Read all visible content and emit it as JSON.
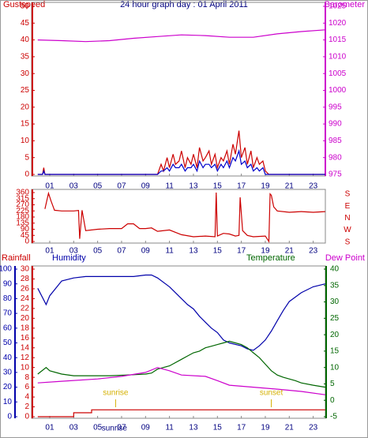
{
  "chart_data": [
    {
      "type": "line",
      "title": "24 hour graph day : 01 April 2011",
      "xlim": [
        0,
        24
      ],
      "xticks": [
        {
          "value": 1,
          "label": "01"
        },
        {
          "value": 3,
          "label": "03"
        },
        {
          "value": 5,
          "label": "05"
        },
        {
          "value": 7,
          "label": "07"
        },
        {
          "value": 9,
          "label": "09"
        },
        11,
        13,
        15,
        17,
        19,
        21,
        23
      ],
      "ylim": [
        0,
        50
      ],
      "yticks": [
        0,
        5,
        10,
        15,
        20,
        25,
        30,
        35,
        40,
        45,
        50
      ],
      "y2lim": [
        975,
        1025
      ],
      "y2ticks": [
        975,
        980,
        985,
        990,
        995,
        1000,
        1005,
        1010,
        1015,
        1020,
        1025
      ],
      "series": [
        {
          "name": "Gustspeed",
          "color": "#cc0000",
          "axis": "y",
          "x": [
            0,
            0.4,
            0.5,
            0.6,
            1,
            10,
            10.3,
            10.5,
            10.8,
            11,
            11.3,
            11.5,
            11.8,
            12,
            12.3,
            12.5,
            12.8,
            13,
            13.3,
            13.5,
            13.8,
            14,
            14.3,
            14.5,
            14.8,
            15,
            15.3,
            15.5,
            15.8,
            16,
            16.3,
            16.5,
            16.8,
            17,
            17.3,
            17.5,
            17.8,
            18,
            18.3,
            18.5,
            18.8,
            19,
            19.3,
            24
          ],
          "values": [
            0,
            0,
            2,
            0,
            0,
            0,
            3,
            1,
            5,
            2,
            6,
            3,
            4,
            7,
            2,
            5,
            3,
            6,
            2,
            8,
            4,
            5,
            7,
            3,
            6,
            2,
            5,
            4,
            7,
            3,
            9,
            6,
            13,
            5,
            8,
            3,
            7,
            2,
            5,
            3,
            4,
            1,
            0,
            0
          ]
        },
        {
          "color": "#0000cc",
          "axis": "y",
          "x": [
            0,
            0.4,
            0.5,
            0.6,
            1,
            10,
            10.3,
            10.5,
            10.8,
            11,
            11.3,
            11.5,
            11.8,
            12,
            12.3,
            12.5,
            12.8,
            13,
            13.3,
            13.5,
            13.8,
            14,
            14.3,
            14.5,
            14.8,
            15,
            15.3,
            15.5,
            15.8,
            16,
            16.3,
            16.5,
            16.8,
            17,
            17.3,
            17.5,
            17.8,
            18,
            18.3,
            18.5,
            18.8,
            19,
            19.3,
            24
          ],
          "values": [
            0,
            0,
            1,
            0,
            0,
            0,
            1,
            1,
            2,
            1,
            3,
            2,
            2,
            3,
            1,
            2,
            2,
            3,
            1,
            4,
            2,
            3,
            3,
            2,
            3,
            1,
            3,
            2,
            4,
            2,
            5,
            4,
            7,
            3,
            4,
            2,
            3,
            1,
            2,
            1,
            2,
            0,
            0,
            0
          ]
        },
        {
          "name": "Barometer",
          "color": "#cc00cc",
          "axis": "y2",
          "x": [
            0,
            2,
            4,
            6,
            8,
            10,
            12,
            14,
            16,
            18,
            20,
            22,
            24
          ],
          "values": [
            1015,
            1014.8,
            1014.5,
            1014.8,
            1015.5,
            1016,
            1016.5,
            1016.3,
            1015.8,
            1015.8,
            1016.8,
            1017.5,
            1018
          ]
        }
      ]
    },
    {
      "type": "line",
      "xlim": [
        0,
        24
      ],
      "xticks": [
        {
          "value": 1,
          "label": "01"
        },
        {
          "value": 3,
          "label": "03"
        },
        {
          "value": 5,
          "label": "05"
        },
        {
          "value": 7,
          "label": "07"
        },
        {
          "value": 9,
          "label": "09"
        },
        11,
        13,
        15,
        17,
        19,
        21,
        23
      ],
      "ylim": [
        0,
        360
      ],
      "yticks": [
        0,
        45,
        90,
        135,
        180,
        225,
        270,
        315,
        360
      ],
      "side_labels": [
        "S",
        "E",
        "N",
        "W",
        "S"
      ],
      "series": [
        {
          "color": "#cc0000",
          "axis": "y",
          "x": [
            0.6,
            0.9,
            1.1,
            1.4,
            2,
            3,
            3.4,
            3.5,
            3.7,
            4,
            5,
            6,
            7,
            7.5,
            8,
            8.5,
            9,
            9.5,
            10,
            11,
            12,
            13,
            14,
            14.8,
            14.9,
            15.0,
            15.5,
            16,
            16.5,
            16.8,
            16.9,
            17.1,
            17.5,
            18,
            19,
            19.3,
            19.4,
            19.5,
            19.7,
            20,
            21,
            22,
            23,
            24
          ],
          "values": [
            240,
            355,
            300,
            230,
            225,
            225,
            228,
            20,
            230,
            80,
            90,
            95,
            95,
            130,
            130,
            95,
            95,
            100,
            75,
            85,
            50,
            35,
            40,
            35,
            360,
            40,
            60,
            55,
            40,
            45,
            325,
            80,
            45,
            35,
            40,
            0,
            350,
            340,
            255,
            225,
            215,
            220,
            215,
            220
          ]
        }
      ]
    },
    {
      "type": "line",
      "xlim": [
        0,
        24
      ],
      "xticks": [
        {
          "value": 1,
          "label": "01"
        },
        {
          "value": 3,
          "label": "03"
        },
        {
          "value": 5,
          "label": "05"
        },
        {
          "value": 7,
          "label": "07"
        },
        {
          "value": 9,
          "label": "09"
        },
        11,
        13,
        15,
        17,
        19,
        21,
        23
      ],
      "ylim": [
        0,
        30
      ],
      "yticks": [
        0,
        2,
        4,
        6,
        8,
        10,
        12,
        14,
        16,
        18,
        20,
        22,
        24,
        26,
        28,
        30
      ],
      "y3lim": [
        0,
        100
      ],
      "y3ticks": [
        0,
        10,
        20,
        30,
        40,
        50,
        60,
        70,
        80,
        90,
        100
      ],
      "y2lim": [
        -5,
        40
      ],
      "y2ticks": [
        -5,
        0,
        5,
        10,
        15,
        20,
        25,
        30,
        35,
        40
      ],
      "series": [
        {
          "name": "Rainfall",
          "color": "#cc0000",
          "axis": "y",
          "x": [
            0,
            3,
            3,
            4.5,
            4.5,
            24
          ],
          "values": [
            0,
            0,
            0.8,
            0.8,
            1.4,
            1.4
          ]
        },
        {
          "name": "Humidity",
          "color": "#0000aa",
          "axis": "y3",
          "x": [
            0,
            0.7,
            1,
            2,
            3,
            4,
            6,
            8,
            9,
            9.5,
            10,
            11,
            12,
            12.5,
            13,
            13.5,
            14,
            14.5,
            15,
            15.5,
            16,
            16.5,
            17,
            17.5,
            18,
            18.5,
            19,
            19.5,
            20,
            20.5,
            21,
            21.5,
            22,
            23,
            24
          ],
          "values": [
            87,
            76,
            82,
            92,
            94,
            95,
            95,
            95,
            96,
            96,
            94,
            88,
            80,
            76,
            73,
            68,
            64,
            60,
            57,
            52,
            50,
            49,
            48,
            46,
            45,
            48,
            52,
            58,
            65,
            72,
            78,
            81,
            84,
            88,
            90
          ]
        },
        {
          "name": "Temperature",
          "color": "#006600",
          "axis": "y2",
          "x": [
            0,
            0.7,
            1,
            2,
            3,
            4,
            6,
            8,
            9,
            9.5,
            10,
            11,
            12,
            12.5,
            13,
            13.5,
            14,
            14.5,
            15,
            15.5,
            16,
            16.5,
            17,
            17.5,
            18,
            18.5,
            19,
            19.5,
            20,
            20.5,
            21,
            21.5,
            22,
            23,
            24
          ],
          "values": [
            8,
            10,
            9,
            8,
            7.5,
            7.5,
            7.5,
            7.8,
            8,
            8.3,
            9.5,
            10.5,
            12.5,
            13.5,
            14.5,
            15,
            16,
            16.5,
            17,
            17.5,
            18,
            17.5,
            17,
            16,
            14.5,
            13,
            11,
            9,
            7.7,
            7,
            6.5,
            6,
            5.3,
            4.6,
            4
          ]
        },
        {
          "name": "Dew Point",
          "color": "#cc00cc",
          "axis": "y2",
          "x": [
            0,
            2,
            5,
            7,
            9,
            10,
            11,
            12,
            14,
            15,
            16,
            18,
            20,
            22,
            24
          ],
          "values": [
            5.3,
            5.8,
            6.5,
            7.3,
            8.5,
            10,
            9,
            7.7,
            7.3,
            6,
            4.6,
            4,
            3.4,
            2.7,
            1.7
          ]
        }
      ],
      "annotations": [
        {
          "text": "sunrise",
          "x": 6.5
        },
        {
          "text": "sunset",
          "x": 19.5
        }
      ],
      "x_annotation": {
        "text": "sunrise",
        "x": 6.4
      }
    }
  ]
}
